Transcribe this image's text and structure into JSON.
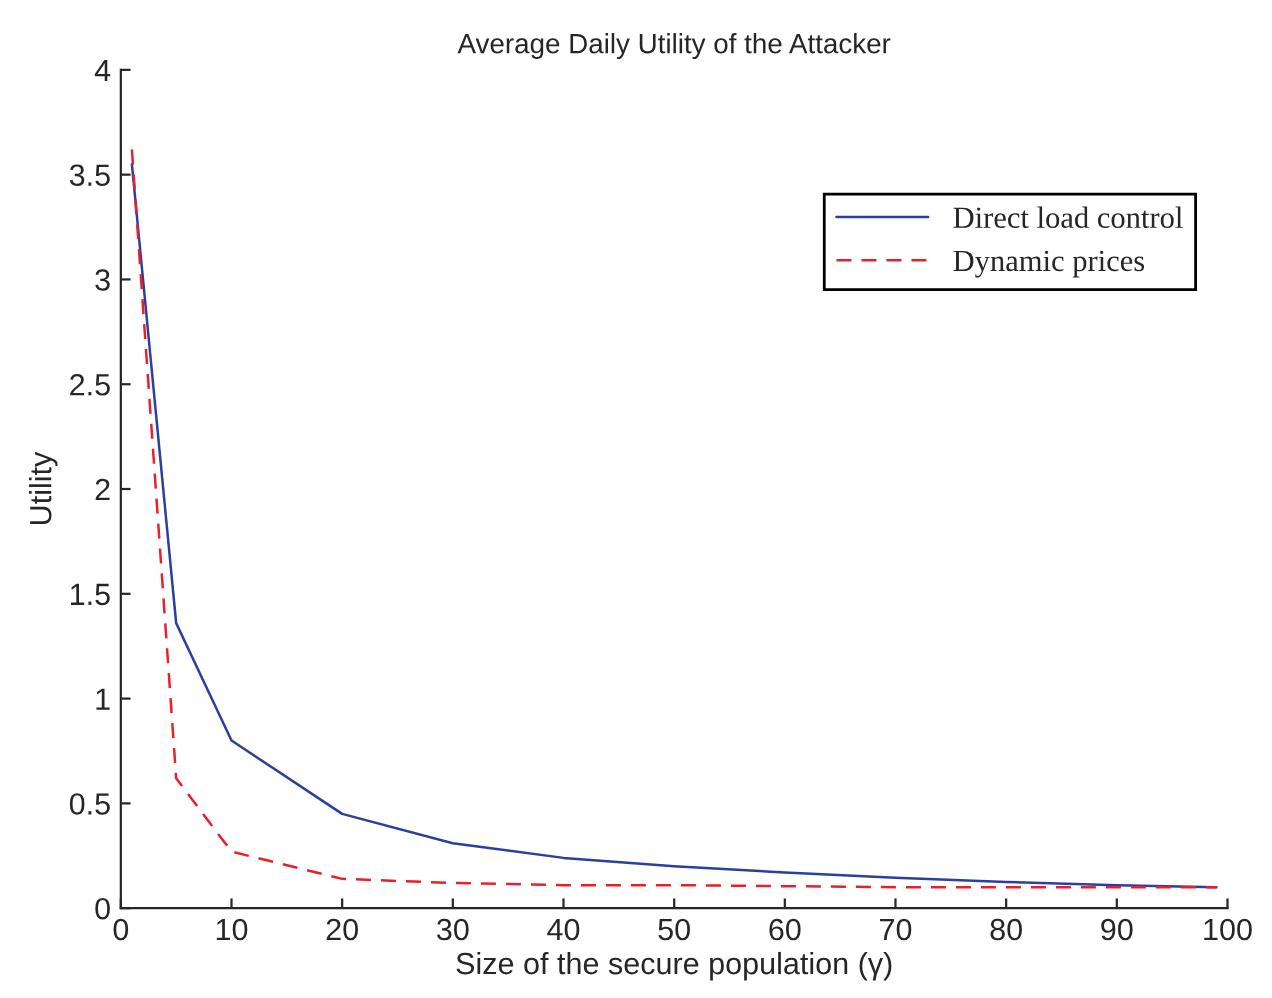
{
  "chart_data": {
    "type": "line",
    "title": "Average Daily Utility of the Attacker",
    "xlabel": "Size of the secure population (γ)",
    "ylabel": "Utility",
    "x": [
      1,
      5,
      10,
      20,
      30,
      40,
      50,
      60,
      70,
      80,
      90,
      99
    ],
    "series": [
      {
        "name": "Direct load control",
        "color": "#2b3fa0",
        "line_style": "solid",
        "values": [
          3.55,
          1.36,
          0.8,
          0.45,
          0.31,
          0.24,
          0.2,
          0.17,
          0.145,
          0.125,
          0.11,
          0.1
        ]
      },
      {
        "name": "Dynamic prices",
        "color": "#e8202a",
        "line_style": "dashed",
        "values": [
          3.62,
          0.62,
          0.27,
          0.14,
          0.12,
          0.11,
          0.11,
          0.105,
          0.1,
          0.1,
          0.1,
          0.1
        ]
      }
    ],
    "xlim": [
      0,
      100
    ],
    "xticks": [
      0,
      10,
      20,
      30,
      40,
      50,
      60,
      70,
      80,
      90,
      100
    ],
    "ylim": [
      0,
      4
    ],
    "yticks": [
      0,
      0.5,
      1,
      1.5,
      2,
      2.5,
      3,
      3.5,
      4
    ],
    "grid": false,
    "legend": "top right",
    "marker": "none"
  }
}
